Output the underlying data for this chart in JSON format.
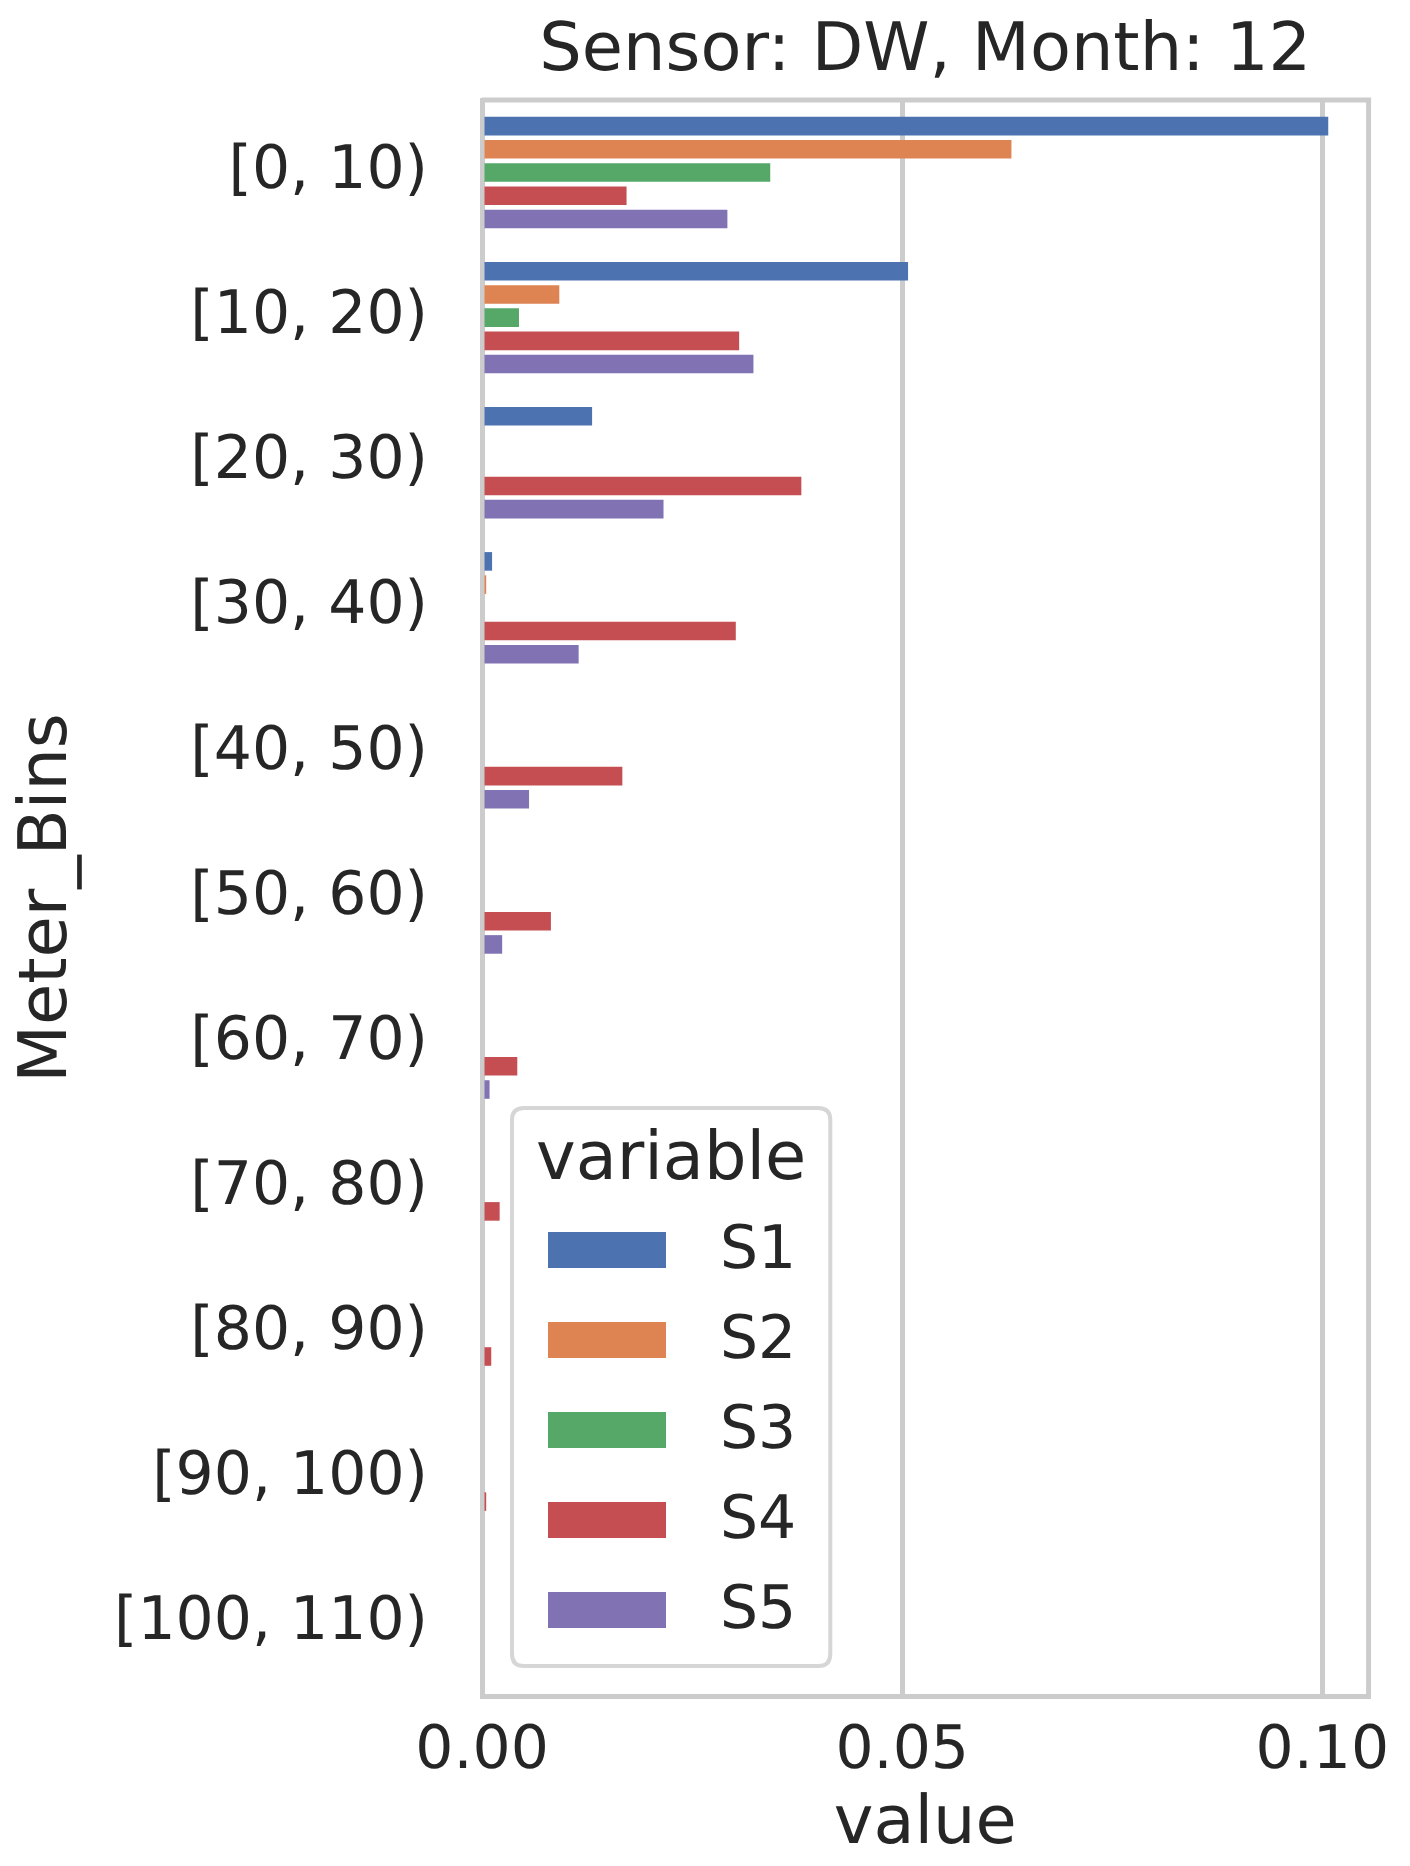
{
  "chart_data": {
    "type": "bar",
    "orientation": "horizontal",
    "title": "Sensor: DW, Month: 12",
    "xlabel": "value",
    "ylabel": "Meter_Bins",
    "legend_title": "variable",
    "categories": [
      "[0, 10)",
      "[10, 20)",
      "[20, 30)",
      "[30, 40)",
      "[40, 50)",
      "[50, 60)",
      "[60, 70)",
      "[70, 80)",
      "[80, 90)",
      "[90, 100)",
      "[100, 110)"
    ],
    "series": [
      {
        "name": "S1",
        "color": "#4c72b0",
        "values": [
          0.1007,
          0.0507,
          0.0131,
          0.0012,
          0,
          0,
          0,
          0,
          0,
          0,
          0
        ]
      },
      {
        "name": "S2",
        "color": "#dd8452",
        "values": [
          0.063,
          0.0092,
          0,
          0.0005,
          0,
          0,
          0,
          0,
          0,
          0,
          0
        ]
      },
      {
        "name": "S3",
        "color": "#55a868",
        "values": [
          0.0343,
          0.0044,
          0,
          0,
          0,
          0,
          0,
          0,
          0,
          0,
          0
        ]
      },
      {
        "name": "S4",
        "color": "#c44e52",
        "values": [
          0.0172,
          0.0306,
          0.038,
          0.0302,
          0.0167,
          0.0082,
          0.0042,
          0.0021,
          0.0011,
          0.0005,
          0
        ]
      },
      {
        "name": "S5",
        "color": "#8172b3",
        "values": [
          0.0292,
          0.0323,
          0.0216,
          0.0115,
          0.0056,
          0.0024,
          0.0009,
          0,
          0,
          0,
          0
        ]
      }
    ],
    "xlim": [
      0,
      0.1055
    ],
    "xticks": [
      {
        "value": 0,
        "label": "0.00"
      },
      {
        "value": 0.05,
        "label": "0.05"
      },
      {
        "value": 0.1,
        "label": "0.10"
      }
    ],
    "grid": "x",
    "legend": "bottom left"
  }
}
